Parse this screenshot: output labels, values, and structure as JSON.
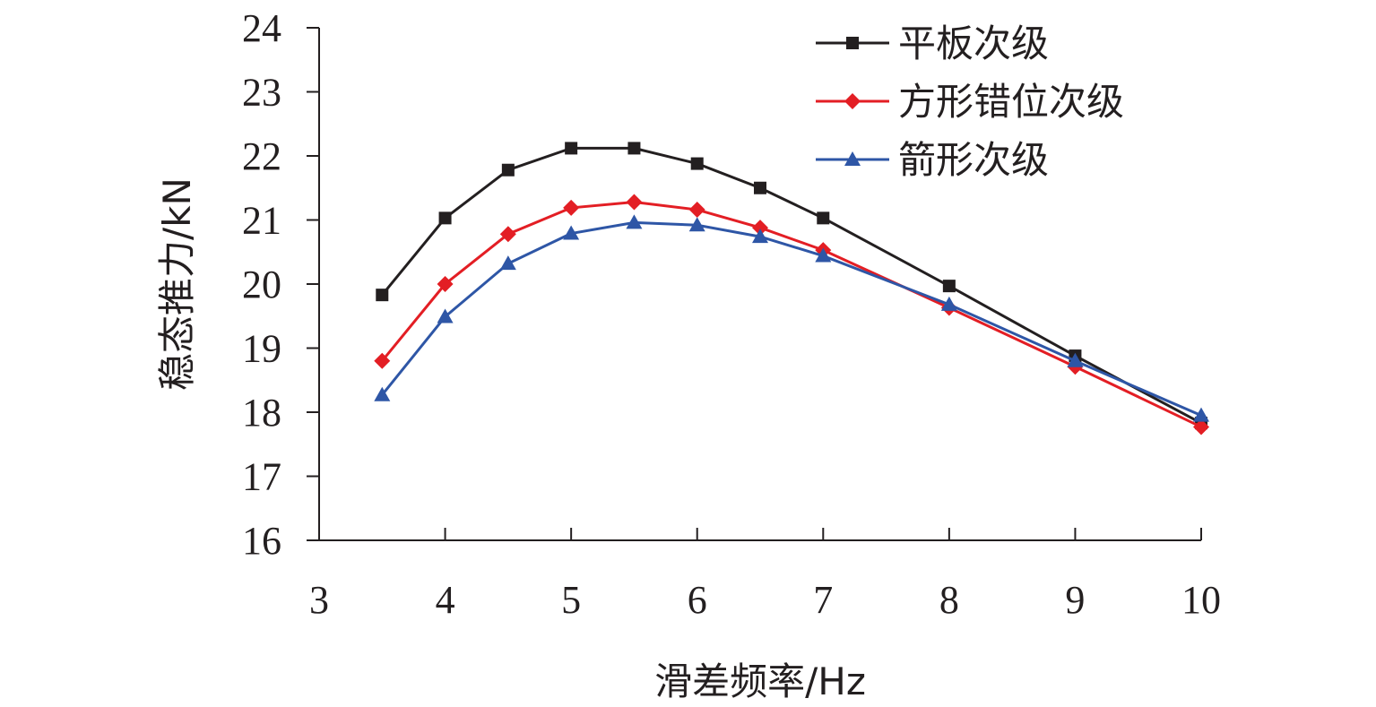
{
  "chart_data": {
    "type": "line",
    "title": "",
    "xlabel": "滑差频率/Hz",
    "ylabel": "稳态推力/kN",
    "xlim": [
      3,
      10
    ],
    "ylim": [
      16,
      24
    ],
    "xticks": [
      3,
      4,
      5,
      6,
      7,
      8,
      9,
      10
    ],
    "yticks": [
      16,
      17,
      18,
      19,
      20,
      21,
      22,
      23,
      24
    ],
    "grid": false,
    "legend_position": "top-right",
    "x": [
      3.5,
      4,
      4.5,
      5,
      5.5,
      6,
      6.5,
      7,
      8,
      9,
      10
    ],
    "series": [
      {
        "name": "平板次级",
        "color": "#231f20",
        "marker": "square",
        "values": [
          19.83,
          21.03,
          21.78,
          22.12,
          22.12,
          21.88,
          21.5,
          21.03,
          19.97,
          18.88,
          17.83
        ]
      },
      {
        "name": "方形错位次级",
        "color": "#e31e24",
        "marker": "diamond",
        "values": [
          18.8,
          20.0,
          20.78,
          21.19,
          21.28,
          21.16,
          20.88,
          20.53,
          19.63,
          18.71,
          17.77
        ]
      },
      {
        "name": "箭形次级",
        "color": "#2e56a6",
        "marker": "triangle",
        "values": [
          18.27,
          19.49,
          20.32,
          20.79,
          20.96,
          20.92,
          20.74,
          20.44,
          19.68,
          18.8,
          17.95
        ]
      }
    ]
  }
}
